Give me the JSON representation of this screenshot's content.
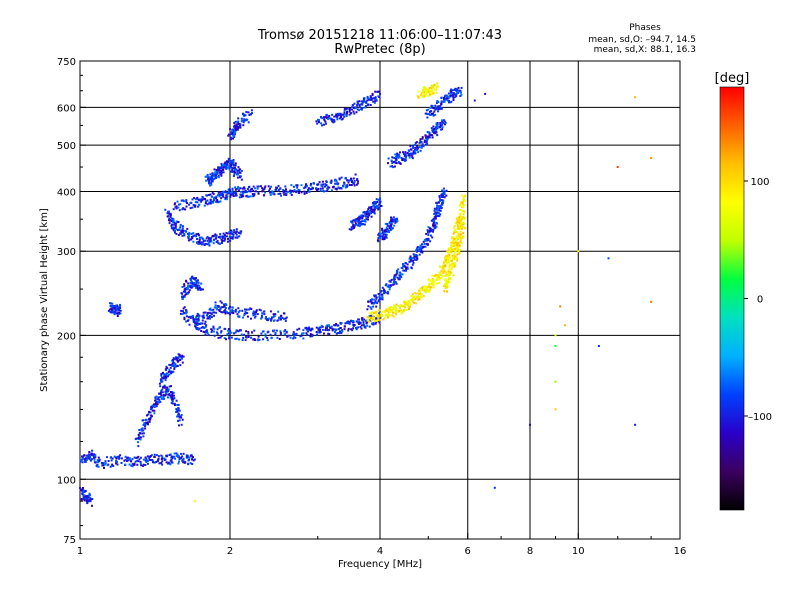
{
  "header": {
    "title_line1": "Tromsø 20151218 11:06:00–11:07:43",
    "title_line2": "RwPretec (8p)",
    "stats_title": "Phases",
    "stats_o": "mean, sd,O: –94.7, 14.5",
    "stats_x": "mean, sd,X:  88.1, 16.3"
  },
  "colorbar": {
    "label": "[deg]",
    "ticks": [
      {
        "value": 100,
        "label": "100"
      },
      {
        "value": 0,
        "label": "0"
      },
      {
        "value": -100,
        "label": "–100"
      }
    ],
    "range": [
      -180,
      180
    ],
    "colors": [
      "#000000",
      "#3b0060",
      "#2a00c8",
      "#0040ff",
      "#00b0ff",
      "#00e0c0",
      "#00ff40",
      "#c0ff00",
      "#ffff00",
      "#ffc000",
      "#ff6000",
      "#ff0000"
    ]
  },
  "chart_data": {
    "type": "scatter",
    "xlabel": "Frequency [MHz]",
    "ylabel": "Stationary phase Virtual Height [km]",
    "x_scale": "log",
    "y_scale": "log",
    "xlim": [
      1,
      16
    ],
    "ylim": [
      75,
      750
    ],
    "x_ticks": [
      {
        "value": 1,
        "label": "1"
      },
      {
        "value": 2,
        "label": "2"
      },
      {
        "value": 4,
        "label": "4"
      },
      {
        "value": 6,
        "label": "6"
      },
      {
        "value": 8,
        "label": "8"
      },
      {
        "value": 10,
        "label": "10"
      },
      {
        "value": 16,
        "label": "16"
      }
    ],
    "x_gridlines": [
      2,
      4,
      6,
      8,
      10
    ],
    "y_ticks": [
      {
        "value": 75,
        "label": "75"
      },
      {
        "value": 100,
        "label": "100"
      },
      {
        "value": 200,
        "label": "200"
      },
      {
        "value": 300,
        "label": "300"
      },
      {
        "value": 400,
        "label": "400"
      },
      {
        "value": 500,
        "label": "500"
      },
      {
        "value": 600,
        "label": "600"
      },
      {
        "value": 750,
        "label": "750"
      }
    ],
    "y_gridlines": [
      100,
      200,
      300,
      400,
      500,
      600
    ],
    "grid": true,
    "series": [
      {
        "name": "O-mode",
        "phase_deg": -95,
        "traces": [
          {
            "x": [
              1.0,
              1.05,
              1.1,
              1.2,
              1.3,
              1.4,
              1.5,
              1.6,
              1.7
            ],
            "y": [
              110,
              112,
              108,
              110,
              109,
              110,
              110,
              111,
              110
            ]
          },
          {
            "x": [
              1.0,
              1.03,
              1.05
            ],
            "y": [
              95,
              92,
              90
            ]
          },
          {
            "x": [
              1.3,
              1.35,
              1.4,
              1.45,
              1.5,
              1.55,
              1.6
            ],
            "y": [
              120,
              130,
              140,
              150,
              155,
              145,
              130
            ]
          },
          {
            "x": [
              1.45,
              1.5,
              1.55,
              1.6
            ],
            "y": [
              160,
              168,
              175,
              180
            ]
          },
          {
            "x": [
              1.15,
              1.18,
              1.2
            ],
            "y": [
              230,
              225,
              228
            ]
          },
          {
            "x": [
              1.6,
              1.7,
              1.8,
              2.0,
              2.2,
              2.5,
              2.8,
              3.0,
              3.2,
              3.4,
              3.6,
              3.8,
              4.0
            ],
            "y": [
              225,
              212,
              205,
              201,
              200,
              200,
              202,
              204,
              206,
              208,
              211,
              214,
              218
            ]
          },
          {
            "x": [
              1.6,
              1.65,
              1.7,
              1.75
            ],
            "y": [
              240,
              255,
              260,
              250
            ]
          },
          {
            "x": [
              1.7,
              1.8,
              1.9,
              2.0,
              2.2,
              2.4,
              2.6
            ],
            "y": [
              215,
              220,
              230,
              225,
              222,
              220,
              218
            ]
          },
          {
            "x": [
              1.5,
              1.55,
              1.6,
              1.7,
              1.8,
              1.9,
              2.0,
              2.1
            ],
            "y": [
              360,
              340,
              330,
              320,
              315,
              318,
              322,
              330
            ]
          },
          {
            "x": [
              1.55,
              1.7,
              1.8,
              1.9,
              2.0,
              2.2
            ],
            "y": [
              370,
              380,
              385,
              390,
              395,
              400
            ]
          },
          {
            "x": [
              1.8,
              1.85,
              1.9,
              1.95,
              2.0,
              2.05,
              2.1
            ],
            "y": [
              420,
              430,
              440,
              450,
              460,
              445,
              430
            ]
          },
          {
            "x": [
              2.0,
              2.2,
              2.4,
              2.6,
              2.8,
              3.0,
              3.2,
              3.4,
              3.6
            ],
            "y": [
              400,
              400,
              401,
              402,
              404,
              408,
              412,
              418,
              425
            ]
          },
          {
            "x": [
              2.0,
              2.05,
              2.1,
              2.2
            ],
            "y": [
              520,
              540,
              560,
              580
            ]
          },
          {
            "x": [
              3.0,
              3.2,
              3.4,
              3.6,
              3.8,
              4.0
            ],
            "y": [
              560,
              570,
              585,
              600,
              620,
              640
            ]
          },
          {
            "x": [
              3.5,
              3.6,
              3.7,
              3.8,
              3.9,
              4.0
            ],
            "y": [
              340,
              345,
              350,
              360,
              370,
              380
            ]
          },
          {
            "x": [
              3.8,
              4.0,
              4.2,
              4.4,
              4.6,
              4.8,
              5.0,
              5.1,
              5.2,
              5.3,
              5.4
            ],
            "y": [
              230,
              240,
              255,
              270,
              285,
              300,
              320,
              340,
              360,
              380,
              400
            ]
          },
          {
            "x": [
              4.2,
              4.4,
              4.6,
              4.8,
              5.0,
              5.2,
              5.4
            ],
            "y": [
              460,
              470,
              480,
              500,
              520,
              540,
              560
            ]
          },
          {
            "x": [
              5.0,
              5.2,
              5.4,
              5.6,
              5.8
            ],
            "y": [
              580,
              600,
              620,
              640,
              650
            ]
          },
          {
            "x": [
              4.0,
              4.1,
              4.2,
              4.3
            ],
            "y": [
              320,
              330,
              340,
              350
            ]
          }
        ]
      },
      {
        "name": "X-mode",
        "phase_deg": 88,
        "traces": [
          {
            "x": [
              3.8,
              4.0,
              4.2,
              4.4,
              4.6,
              4.8,
              5.0,
              5.2,
              5.4,
              5.5,
              5.6,
              5.7,
              5.8,
              5.9
            ],
            "y": [
              218,
              220,
              224,
              228,
              234,
              242,
              252,
              264,
              278,
              292,
              310,
              330,
              355,
              390
            ]
          },
          {
            "x": [
              5.4,
              5.5,
              5.6,
              5.7,
              5.8,
              5.9
            ],
            "y": [
              250,
              265,
              280,
              300,
              320,
              350
            ]
          },
          {
            "x": [
              4.8,
              5.0,
              5.2
            ],
            "y": [
              640,
              650,
              660
            ]
          }
        ]
      }
    ],
    "scattered_points": [
      {
        "x": 9.0,
        "y": 200,
        "phase": 60
      },
      {
        "x": 9.0,
        "y": 190,
        "phase": 20
      },
      {
        "x": 9.0,
        "y": 160,
        "phase": 40
      },
      {
        "x": 9.2,
        "y": 230,
        "phase": 140
      },
      {
        "x": 9.4,
        "y": 210,
        "phase": 120
      },
      {
        "x": 10.0,
        "y": 300,
        "phase": 80
      },
      {
        "x": 11.0,
        "y": 190,
        "phase": -90
      },
      {
        "x": 11.5,
        "y": 290,
        "phase": -80
      },
      {
        "x": 12.0,
        "y": 450,
        "phase": 160
      },
      {
        "x": 13.0,
        "y": 630,
        "phase": 120
      },
      {
        "x": 14.0,
        "y": 470,
        "phase": 130
      },
      {
        "x": 14.0,
        "y": 235,
        "phase": 140
      },
      {
        "x": 13.0,
        "y": 130,
        "phase": -100
      },
      {
        "x": 8.0,
        "y": 130,
        "phase": -110
      },
      {
        "x": 9.0,
        "y": 140,
        "phase": 110
      },
      {
        "x": 6.8,
        "y": 96,
        "phase": -90
      },
      {
        "x": 6.2,
        "y": 620,
        "phase": -100
      },
      {
        "x": 6.5,
        "y": 640,
        "phase": -110
      },
      {
        "x": 4.9,
        "y": 660,
        "phase": 60
      },
      {
        "x": 1.7,
        "y": 90,
        "phase": 90
      }
    ]
  }
}
